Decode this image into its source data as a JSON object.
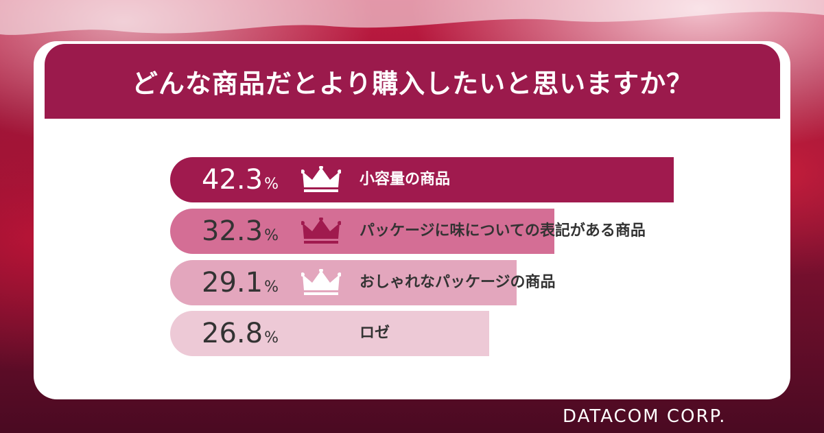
{
  "title": "どんな商品だとより購入したいと思いますか？",
  "footer": "DATACOM CORP.",
  "chart_data": {
    "type": "bar",
    "orientation": "horizontal",
    "title": "どんな商品だとより購入したいと思いますか？",
    "categories": [
      "小容量の商品",
      "パッケージに味についての表記がある商品",
      "おしゃれなパッケージの商品",
      "ロゼ"
    ],
    "values": [
      42.3,
      32.3,
      29.1,
      26.8
    ],
    "value_labels": [
      "42.3",
      "32.3",
      "29.1",
      "26.8"
    ],
    "unit": "%",
    "ranks": [
      "gold-crown",
      "rose-crown",
      "pink-crown",
      "none"
    ],
    "bar_colors": [
      "#a01a4e",
      "#d46e95",
      "#e3a6bd",
      "#edc9d6"
    ],
    "text_colors": [
      "#ffffff",
      "#333333",
      "#333333",
      "#333333"
    ],
    "crown_colors": [
      "#ffffff",
      "#a01a4e",
      "#ffffff",
      null
    ],
    "xlim": [
      0,
      50
    ]
  }
}
